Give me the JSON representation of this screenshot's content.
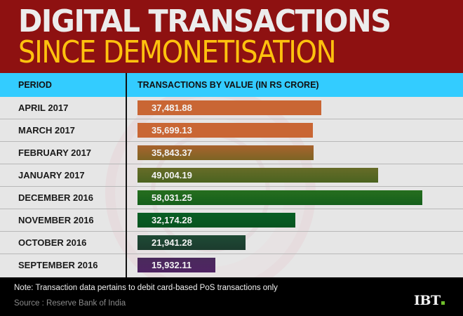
{
  "title": {
    "line1": "DIGITAL TRANSACTIONS",
    "line2": "SINCE DEMONETISATION"
  },
  "table": {
    "header_period": "PERIOD",
    "header_value": "TRANSACTIONS BY VALUE (IN RS CRORE)",
    "rows": [
      {
        "period": "APRIL 2017",
        "value": "37,481.88",
        "color": "#c96634",
        "color2": "#c96634"
      },
      {
        "period": "MARCH 2017",
        "value": "35,699.13",
        "color": "#c96634",
        "color2": "#c96634"
      },
      {
        "period": "FEBRUARY 2017",
        "value": "35,843.37",
        "color": "#a8632e",
        "color2": "#7d6424"
      },
      {
        "period": "JANUARY 2017",
        "value": "49,004.19",
        "color": "#676c28",
        "color2": "#4a6320"
      },
      {
        "period": "DECEMBER 2016",
        "value": "58,031.25",
        "color": "#266e1e",
        "color2": "#155f1c"
      },
      {
        "period": "NOVEMBER 2016",
        "value": "32,174.28",
        "color": "#085e24",
        "color2": "#07531f"
      },
      {
        "period": "OCTOBER 2016",
        "value": "21,941.28",
        "color": "#1e4a35",
        "color2": "#1c3c2e"
      },
      {
        "period": "SEPTEMBER 2016",
        "value": "15,932.11",
        "color": "#4a2a5c",
        "color2": "#4f2463"
      }
    ]
  },
  "footer": {
    "note": "Note: Transaction data pertains to debit card-based PoS transactions only",
    "source": "Source : Reserve Bank of India",
    "logo": "IBT",
    "logo_dot_color": "#6fbf2c"
  },
  "colors": {
    "title_band": "#8e1111",
    "title_line1": "#ececec",
    "title_line2": "#ffc20e",
    "header_band": "#33ccff",
    "table_bg": "#e6e6e6",
    "footer_bg": "#000000"
  },
  "chart_data": {
    "type": "bar",
    "orientation": "horizontal",
    "title": "Digital Transactions Since Demonetisation",
    "xlabel": "Transactions by value (in Rs crore)",
    "ylabel": "Period",
    "categories": [
      "April 2017",
      "March 2017",
      "February 2017",
      "January 2017",
      "December 2016",
      "November 2016",
      "October 2016",
      "September 2016"
    ],
    "values": [
      37481.88,
      35699.13,
      35843.37,
      49004.19,
      58031.25,
      32174.28,
      21941.28,
      15932.11
    ],
    "units": "Rs crore",
    "grid": false,
    "legend": null,
    "note": "Transaction data pertains to debit card-based PoS transactions only",
    "source": "Reserve Bank of India"
  }
}
